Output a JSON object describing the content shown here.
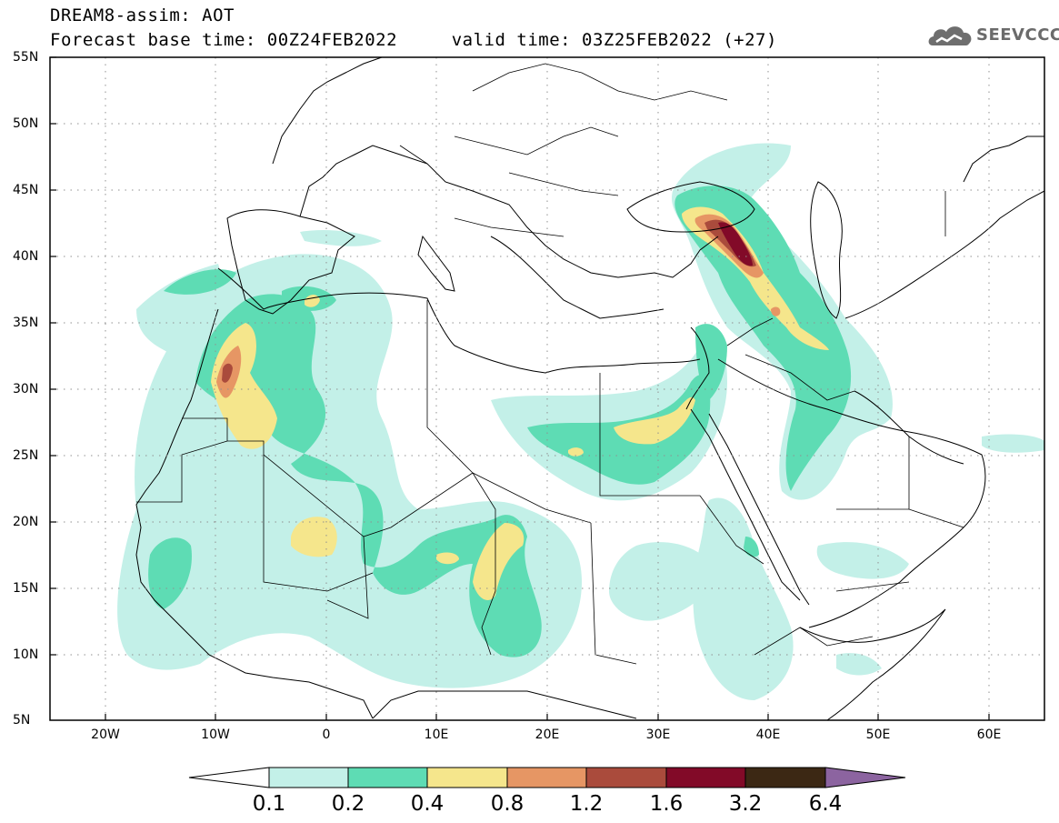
{
  "header": {
    "title_line1": "DREAM8-assim: AOT",
    "title_line2": "Forecast base time: 00Z24FEB2022     valid time: 03Z25FEB2022 (+27)"
  },
  "logo": {
    "text": "SEEVCCC",
    "icon": "cloud-logo-icon"
  },
  "map": {
    "lat_labels": [
      "55N",
      "50N",
      "45N",
      "40N",
      "35N",
      "30N",
      "25N",
      "20N",
      "15N",
      "10N",
      "5N"
    ],
    "lon_labels": [
      "20W",
      "10W",
      "0",
      "10E",
      "20E",
      "30E",
      "40E",
      "50E",
      "60E"
    ],
    "lat_range": [
      5,
      55
    ],
    "lon_range": [
      -25,
      65
    ],
    "grid": "dotted"
  },
  "colorbar": {
    "labels": [
      "0.1",
      "0.2",
      "0.4",
      "0.8",
      "1.2",
      "1.6",
      "3.2",
      "6.4"
    ],
    "colors": [
      "#ffffff",
      "#c3f0e8",
      "#5edcb4",
      "#f5e68c",
      "#e69664",
      "#aa4b3c",
      "#820a28",
      "#3c2814",
      "#8c64a0"
    ]
  }
}
